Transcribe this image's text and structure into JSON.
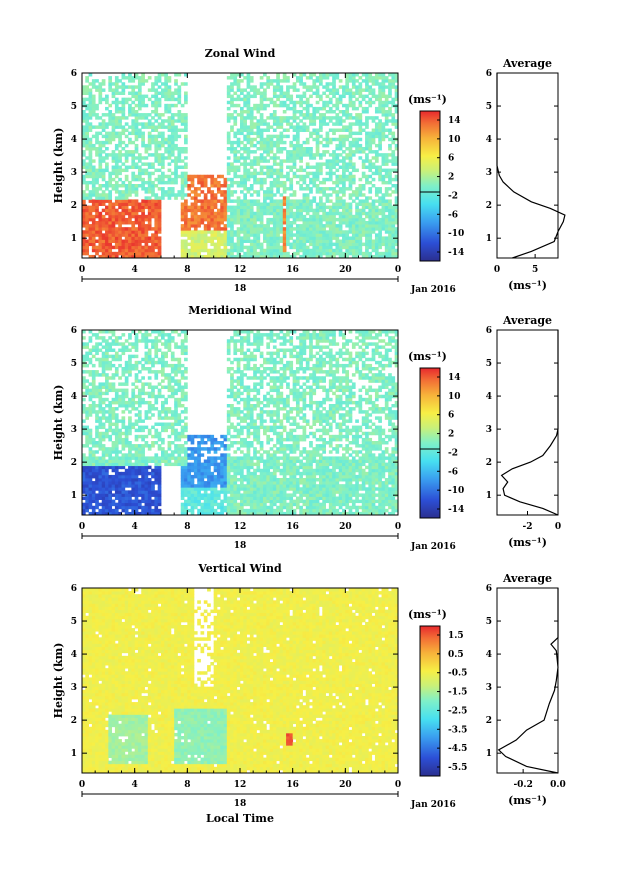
{
  "chart_data": [
    {
      "type": "heatmap",
      "title": "Zonal Wind",
      "ylabel": "Height (km)",
      "unit_label": "(ms⁻¹)",
      "xticks": [
        "0",
        "4",
        "8",
        "12",
        "16",
        "20",
        "0"
      ],
      "xlim": [
        0,
        24
      ],
      "yticks": [
        "1",
        "2",
        "3",
        "4",
        "5",
        "6"
      ],
      "ylim": [
        0.4,
        6
      ],
      "date_tick": "18",
      "date_label": "Jan 2016",
      "colorbar_ticks": [
        "14",
        "10",
        "6",
        "2",
        "-2",
        "-6",
        "-10",
        "-14"
      ],
      "colorbar_range": [
        -16,
        16
      ],
      "regions": [
        {
          "x": [
            0,
            6
          ],
          "y": [
            0.4,
            2.2
          ],
          "v": 14
        },
        {
          "x": [
            7.5,
            11
          ],
          "y": [
            0.4,
            2.9
          ],
          "v": 13
        },
        {
          "x": [
            7.5,
            11
          ],
          "y": [
            0.4,
            1.2
          ],
          "v": 4
        },
        {
          "x": [
            11,
            24
          ],
          "y": [
            0.4,
            6
          ],
          "v": 0
        },
        {
          "x": [
            0,
            8
          ],
          "y": [
            2.2,
            6
          ],
          "v": 0
        },
        {
          "x": [
            15.2,
            15.6
          ],
          "y": [
            0.6,
            2.3
          ],
          "v": 12
        }
      ],
      "profile": {
        "title": "Average",
        "xlabel": "(ms⁻¹)",
        "xticks": [
          "0",
          "5"
        ],
        "xlim": [
          0,
          8
        ],
        "height": [
          0.4,
          0.6,
          0.9,
          1.2,
          1.5,
          1.7,
          1.9,
          2.1,
          2.4,
          2.7,
          2.9,
          3.2,
          3.6,
          4,
          4.5,
          5,
          5.5,
          6
        ],
        "values": [
          2.0,
          4.5,
          7.5,
          8.0,
          8.7,
          8.9,
          7.0,
          4.5,
          2.2,
          0.8,
          0.3,
          0,
          0,
          0,
          0,
          0,
          0,
          0
        ]
      }
    },
    {
      "type": "heatmap",
      "title": "Meridional Wind",
      "ylabel": "Height (km)",
      "unit_label": "(ms⁻¹)",
      "xticks": [
        "0",
        "4",
        "8",
        "12",
        "16",
        "20",
        "0"
      ],
      "xlim": [
        0,
        24
      ],
      "yticks": [
        "1",
        "2",
        "3",
        "4",
        "5",
        "6"
      ],
      "ylim": [
        0.4,
        6
      ],
      "date_tick": "18",
      "date_label": "Jan 2016",
      "colorbar_ticks": [
        "14",
        "10",
        "6",
        "2",
        "-2",
        "-6",
        "-10",
        "-14"
      ],
      "colorbar_range": [
        -16,
        16
      ],
      "regions": [
        {
          "x": [
            0,
            6
          ],
          "y": [
            0.4,
            1.9
          ],
          "v": -12
        },
        {
          "x": [
            7.5,
            11
          ],
          "y": [
            0.4,
            2.8
          ],
          "v": -8
        },
        {
          "x": [
            7.5,
            11
          ],
          "y": [
            0.4,
            1.2
          ],
          "v": -2
        },
        {
          "x": [
            11,
            24
          ],
          "y": [
            0.4,
            6
          ],
          "v": 0
        },
        {
          "x": [
            0,
            8
          ],
          "y": [
            1.9,
            6
          ],
          "v": 0
        }
      ],
      "profile": {
        "title": "Average",
        "xlabel": "(ms⁻¹)",
        "xticks": [
          "-2",
          "0"
        ],
        "xlim": [
          -4,
          0
        ],
        "height": [
          0.4,
          0.6,
          0.8,
          1.0,
          1.2,
          1.4,
          1.6,
          1.8,
          2.0,
          2.2,
          2.5,
          2.8,
          3.0,
          3.5,
          4,
          5,
          6
        ],
        "values": [
          0,
          -1.0,
          -2.5,
          -3.5,
          -3.6,
          -3.3,
          -3.7,
          -3.0,
          -1.8,
          -1.0,
          -0.5,
          -0.1,
          0,
          0,
          0,
          0,
          0
        ]
      }
    },
    {
      "type": "heatmap",
      "title": "Vertical Wind",
      "ylabel": "Height (km)",
      "xlabel": "Local Time",
      "unit_label": "(ms⁻¹)",
      "xticks": [
        "0",
        "4",
        "8",
        "12",
        "16",
        "20",
        "0"
      ],
      "xlim": [
        0,
        24
      ],
      "yticks": [
        "1",
        "2",
        "3",
        "4",
        "5",
        "6"
      ],
      "ylim": [
        0.4,
        6
      ],
      "date_tick": "18",
      "date_label": "Jan 2016",
      "colorbar_ticks": [
        "1.5",
        "0.5",
        "-0.5",
        "-1.5",
        "-2.5",
        "-3.5",
        "-4.5",
        "-5.5"
      ],
      "colorbar_range": [
        -6,
        2
      ],
      "regions": [
        {
          "x": [
            0,
            24
          ],
          "y": [
            0.4,
            6
          ],
          "v": -0.5
        },
        {
          "x": [
            2,
            5
          ],
          "y": [
            0.7,
            2.2
          ],
          "v": -1.6
        },
        {
          "x": [
            7,
            11
          ],
          "y": [
            0.7,
            2.4
          ],
          "v": -1.8
        },
        {
          "x": [
            15.5,
            15.9
          ],
          "y": [
            1.2,
            1.6
          ],
          "v": 1.6
        }
      ],
      "profile": {
        "title": "Average",
        "xlabel": "(ms⁻¹)",
        "xticks": [
          "-0.2",
          "0.0"
        ],
        "xlim": [
          -0.35,
          0
        ],
        "height": [
          0.4,
          0.6,
          0.9,
          1.1,
          1.4,
          1.7,
          2.0,
          2.5,
          2.9,
          3.2,
          3.6,
          4.1,
          4.3,
          4.5,
          5.0,
          5.5,
          6
        ],
        "values": [
          0,
          -0.18,
          -0.3,
          -0.34,
          -0.24,
          -0.18,
          -0.08,
          -0.05,
          -0.02,
          -0.01,
          0,
          -0.01,
          -0.04,
          0,
          0,
          0,
          0
        ]
      }
    }
  ]
}
